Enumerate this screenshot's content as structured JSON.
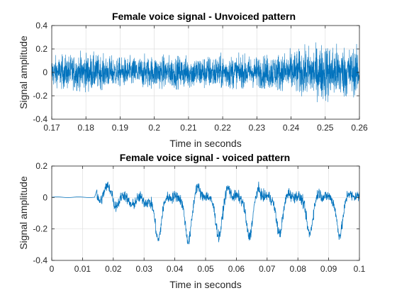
{
  "chart_data": [
    {
      "type": "line",
      "title": "Female voice signal - Unvoiced pattern",
      "xlabel": "Time in seconds",
      "ylabel": "Signal amplitude",
      "xlim": [
        0.17,
        0.26
      ],
      "ylim": [
        -0.4,
        0.4
      ],
      "xticks": [
        "0.17",
        "0.18",
        "0.19",
        "0.2",
        "0.21",
        "0.22",
        "0.23",
        "0.24",
        "0.25",
        "0.26"
      ],
      "yticks": [
        "-0.4",
        "-0.2",
        "0",
        "0.2",
        "0.4"
      ],
      "grid": true,
      "series": [
        {
          "color": "#0072bd",
          "signal": "unvoiced noise centred on 0, typical envelope about ±0.12, peaks to about ±0.25",
          "envelope_x": [
            0.17,
            0.18,
            0.19,
            0.2,
            0.21,
            0.22,
            0.23,
            0.24,
            0.25,
            0.26
          ],
          "envelope_upper": [
            0.16,
            0.19,
            0.14,
            0.17,
            0.15,
            0.17,
            0.17,
            0.22,
            0.27,
            0.24
          ],
          "envelope_lower": [
            -0.13,
            -0.17,
            -0.13,
            -0.14,
            -0.15,
            -0.15,
            -0.13,
            -0.17,
            -0.28,
            -0.2
          ]
        }
      ]
    },
    {
      "type": "line",
      "title": "Female voice signal - voiced pattern",
      "xlabel": "Time in seconds",
      "ylabel": "Signal amplitude",
      "xlim": [
        0,
        0.1
      ],
      "ylim": [
        -0.4,
        0.2
      ],
      "xticks": [
        "0",
        "0.01",
        "0.02",
        "0.03",
        "0.04",
        "0.05",
        "0.06",
        "0.07",
        "0.08",
        "0.09",
        "0.1"
      ],
      "yticks": [
        "-0.4",
        "-0.2",
        "0",
        "0.2"
      ],
      "grid": true,
      "series": [
        {
          "color": "#0072bd",
          "signal": "near zero until about 0.0143 s, then quasi-periodic voiced pulses",
          "onset": 0.0143,
          "pulse_times": [
            0.0358,
            0.0456,
            0.0555,
            0.0654,
            0.0752,
            0.085,
            0.0948
          ],
          "pulse_minima": [
            -0.24,
            -0.25,
            -0.22,
            -0.22,
            -0.2,
            -0.2,
            -0.21
          ],
          "peak_maxima": [
            0.05,
            0.18,
            0.16,
            0.14,
            0.1,
            0.1,
            0.1
          ]
        }
      ]
    }
  ]
}
